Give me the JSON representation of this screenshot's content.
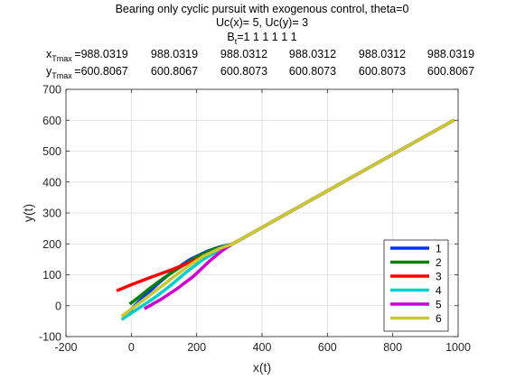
{
  "chart_data": {
    "type": "line",
    "title_lines": [
      "Bearing only cyclic pursuit with exogenous control, theta=0",
      "Uc(x)= 5, Uc(y)= 3"
    ],
    "bt_label": {
      "main": "B",
      "sub": "t",
      "rest": "=1  1  1  1  1  1"
    },
    "xtmax_row": {
      "label_main": "x",
      "label_sub": "Tmax",
      "values": [
        "=988.0319",
        "988.0319",
        "988.0312",
        "988.0312",
        "988.0312",
        "988.0319"
      ]
    },
    "ytmax_row": {
      "label_main": "y",
      "label_sub": "Tmax",
      "values": [
        "=600.8067",
        "600.8067",
        "600.8073",
        "600.8073",
        "600.8073",
        "600.8067"
      ]
    },
    "xlabel": "x(t)",
    "ylabel": "y(t)",
    "xlim": [
      -200,
      1000
    ],
    "ylim": [
      -100,
      700
    ],
    "xticks": [
      "-200",
      "0",
      "200",
      "400",
      "600",
      "800",
      "1000"
    ],
    "yticks": [
      "-100",
      "0",
      "100",
      "200",
      "300",
      "400",
      "500",
      "600",
      "700"
    ],
    "grid": true,
    "legend_position": "bottom-right",
    "series": [
      {
        "name": "1",
        "color": "#0033ff",
        "points": [
          [
            -22,
            -40
          ],
          [
            10,
            0
          ],
          [
            40,
            30
          ],
          [
            80,
            70
          ],
          [
            130,
            115
          ],
          [
            180,
            150
          ],
          [
            230,
            175
          ],
          [
            270,
            190
          ],
          [
            310,
            200
          ],
          [
            988.03,
            600.81
          ]
        ]
      },
      {
        "name": "2",
        "color": "#008000",
        "points": [
          [
            -5,
            5
          ],
          [
            20,
            25
          ],
          [
            55,
            55
          ],
          [
            100,
            90
          ],
          [
            150,
            125
          ],
          [
            200,
            158
          ],
          [
            250,
            182
          ],
          [
            310,
            200
          ],
          [
            988.03,
            600.81
          ]
        ]
      },
      {
        "name": "3",
        "color": "#ff0000",
        "points": [
          [
            -45,
            48
          ],
          [
            0,
            68
          ],
          [
            60,
            92
          ],
          [
            120,
            115
          ],
          [
            180,
            140
          ],
          [
            240,
            170
          ],
          [
            310,
            200
          ],
          [
            988.03,
            600.81
          ]
        ]
      },
      {
        "name": "4",
        "color": "#00cccc",
        "points": [
          [
            -30,
            -45
          ],
          [
            20,
            -10
          ],
          [
            70,
            25
          ],
          [
            120,
            65
          ],
          [
            170,
            110
          ],
          [
            220,
            150
          ],
          [
            270,
            180
          ],
          [
            310,
            200
          ],
          [
            988.03,
            600.81
          ]
        ]
      },
      {
        "name": "5",
        "color": "#cc00cc",
        "points": [
          [
            40,
            -10
          ],
          [
            90,
            20
          ],
          [
            140,
            55
          ],
          [
            190,
            95
          ],
          [
            240,
            145
          ],
          [
            280,
            180
          ],
          [
            310,
            200
          ],
          [
            988.03,
            600.81
          ]
        ]
      },
      {
        "name": "6",
        "color": "#c8c832",
        "points": [
          [
            -30,
            -35
          ],
          [
            20,
            5
          ],
          [
            70,
            45
          ],
          [
            120,
            85
          ],
          [
            170,
            125
          ],
          [
            220,
            160
          ],
          [
            270,
            185
          ],
          [
            310,
            200
          ],
          [
            988.03,
            600.81
          ]
        ]
      }
    ]
  }
}
